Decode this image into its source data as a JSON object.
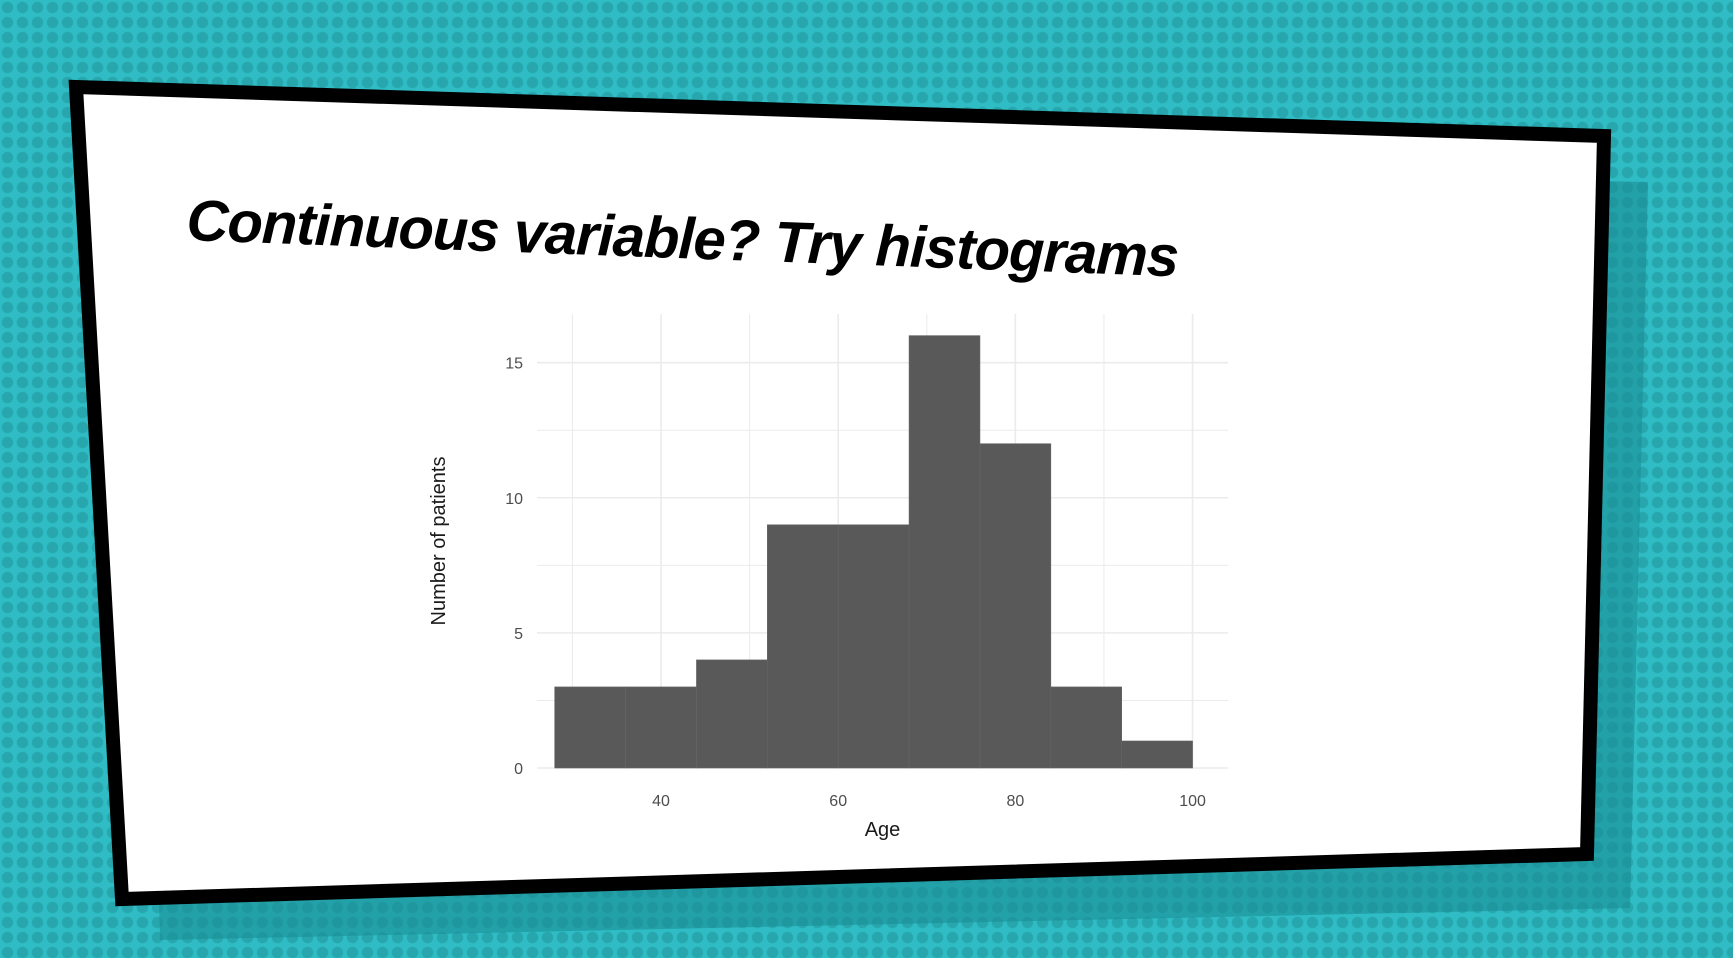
{
  "slide": {
    "title": "Continuous variable? Try histograms"
  },
  "colors": {
    "background": "#2fbcc4",
    "panel": "#ffffff",
    "frame": "#000000",
    "bars": "#595959",
    "grid": "#ebebeb"
  },
  "chart_data": {
    "type": "bar",
    "subtype": "histogram",
    "title": "",
    "xlabel": "Age",
    "ylabel": "Number of patients",
    "bin_width": 8,
    "bins": [
      {
        "start": 28,
        "end": 36,
        "count": 3
      },
      {
        "start": 36,
        "end": 44,
        "count": 3
      },
      {
        "start": 44,
        "end": 52,
        "count": 4
      },
      {
        "start": 52,
        "end": 60,
        "count": 9
      },
      {
        "start": 60,
        "end": 68,
        "count": 9
      },
      {
        "start": 68,
        "end": 76,
        "count": 16
      },
      {
        "start": 76,
        "end": 84,
        "count": 12
      },
      {
        "start": 84,
        "end": 92,
        "count": 3
      },
      {
        "start": 92,
        "end": 100,
        "count": 1
      }
    ],
    "xlim": [
      26,
      104
    ],
    "ylim": [
      0,
      16.8
    ],
    "x_ticks": [
      40,
      60,
      80,
      100
    ],
    "y_ticks": [
      0,
      5,
      10,
      15
    ],
    "grid": true,
    "legend": "none"
  }
}
